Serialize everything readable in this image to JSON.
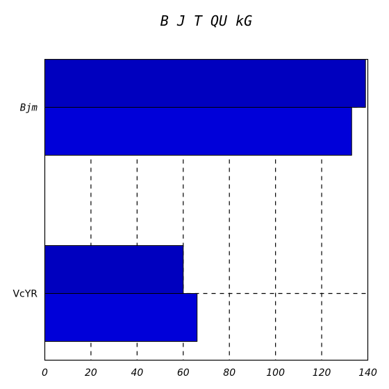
{
  "chart_data": {
    "type": "bar",
    "orientation": "horizontal",
    "title": "B J T QU   kG",
    "categories": [
      "Bjm",
      "VcYR"
    ],
    "series": [
      {
        "values": [
          139,
          60
        ],
        "color": "#0000bf"
      },
      {
        "values": [
          133,
          66
        ],
        "color": "#0000d9"
      }
    ],
    "xlim": [
      0,
      140
    ],
    "xticks": [
      "0",
      "20",
      "40",
      "60",
      "80",
      "100",
      "120",
      "140"
    ],
    "grid": true
  }
}
